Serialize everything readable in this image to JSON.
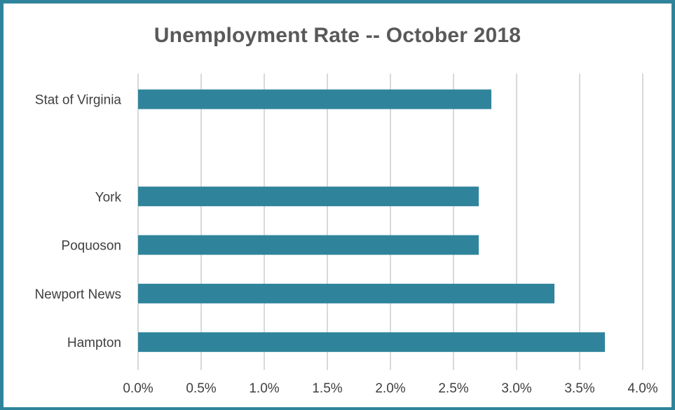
{
  "chart_data": {
    "type": "bar",
    "orientation": "horizontal",
    "title": "Unemployment Rate -- October 2018",
    "categories": [
      "Stat of Virginia",
      "",
      "York",
      "Poquoson",
      "Newport News",
      "Hampton"
    ],
    "values": [
      2.8,
      null,
      2.7,
      2.7,
      3.3,
      3.7
    ],
    "xlim": [
      0,
      4.0
    ],
    "x_ticks": [
      "0.0%",
      "0.5%",
      "1.0%",
      "1.5%",
      "2.0%",
      "2.5%",
      "3.0%",
      "3.5%",
      "4.0%"
    ],
    "xlabel": "",
    "ylabel": "",
    "grid": "vertical",
    "legend": "none",
    "bar_color": "#2F849C",
    "frame_color": "#2F849C",
    "grid_color": "#D9D9D9"
  }
}
